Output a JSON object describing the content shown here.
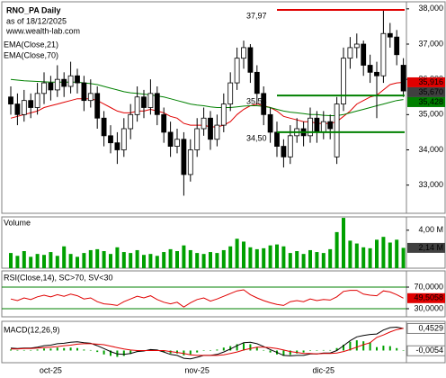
{
  "chart_data": [
    {
      "type": "candlestick",
      "title": "RNO_PA Daily",
      "subtitle": "as of 18/12/2025",
      "watermark": "www.wealth-lab.com",
      "categories": [
        null,
        null,
        null,
        null,
        null,
        null,
        "oct-25",
        null,
        null,
        null,
        null,
        null,
        null,
        null,
        null,
        null,
        null,
        null,
        null,
        null,
        null,
        null,
        null,
        null,
        null,
        null,
        null,
        null,
        "nov-25",
        null,
        null,
        null,
        null,
        null,
        null,
        null,
        null,
        null,
        null,
        null,
        null,
        null,
        null,
        null,
        null,
        null,
        null,
        "dic-25",
        null,
        null,
        null,
        null,
        null,
        null,
        null,
        null,
        null,
        null,
        null,
        null
      ],
      "open": [
        35.5,
        35.3,
        35.0,
        35.4,
        35.2,
        35.6,
        35.9,
        35.7,
        36.0,
        35.8,
        36.1,
        35.9,
        35.4,
        35.6,
        34.9,
        34.4,
        34.2,
        34.0,
        34.6,
        35.0,
        35.5,
        35.2,
        35.6,
        35.0,
        34.5,
        34.1,
        34.3,
        33.3,
        34.0,
        34.6,
        34.9,
        34.3,
        34.7,
        35.3,
        35.9,
        36.6,
        36.9,
        36.2,
        35.6,
        35.0,
        34.5,
        34.1,
        33.8,
        34.4,
        34.6,
        34.4,
        34.9,
        34.5,
        34.8,
        33.8,
        35.3,
        36.6,
        36.9,
        37.0,
        36.4,
        36.2,
        36.1,
        37.3,
        37.2,
        36.4
      ],
      "high": [
        35.8,
        35.6,
        35.7,
        35.6,
        35.9,
        36.2,
        36.1,
        36.4,
        36.2,
        36.5,
        36.3,
        36.1,
        36.0,
        35.8,
        35.1,
        34.7,
        34.5,
        34.9,
        35.3,
        35.8,
        35.7,
        36.0,
        35.8,
        35.2,
        34.8,
        34.6,
        34.5,
        34.3,
        34.9,
        35.2,
        35.1,
        35.0,
        35.6,
        36.2,
        36.9,
        37.1,
        37.0,
        36.4,
        35.8,
        35.2,
        34.8,
        34.3,
        34.7,
        34.9,
        34.8,
        35.2,
        35.1,
        35.1,
        35.0,
        35.5,
        36.9,
        37.2,
        37.3,
        37.1,
        36.7,
        36.5,
        37.97,
        37.6,
        37.4,
        36.6
      ],
      "low": [
        35.0,
        34.7,
        34.8,
        34.9,
        35.0,
        35.3,
        35.4,
        35.5,
        35.5,
        35.6,
        35.6,
        35.1,
        35.2,
        34.6,
        34.1,
        33.9,
        33.6,
        33.8,
        34.3,
        34.8,
        34.9,
        35.0,
        34.7,
        34.2,
        33.8,
        33.9,
        32.7,
        33.1,
        33.8,
        34.4,
        34.0,
        34.1,
        34.5,
        35.1,
        35.7,
        36.3,
        35.9,
        35.3,
        34.7,
        34.2,
        33.8,
        33.5,
        33.6,
        34.2,
        34.1,
        34.2,
        34.2,
        34.3,
        34.3,
        33.6,
        35.1,
        36.3,
        36.6,
        36.1,
        35.9,
        34.9,
        35.9,
        36.9,
        36.4,
        35.5
      ],
      "close": [
        35.3,
        35.0,
        35.4,
        35.2,
        35.6,
        35.9,
        35.7,
        36.0,
        35.8,
        36.1,
        35.9,
        35.4,
        35.6,
        34.9,
        34.4,
        34.2,
        34.0,
        34.6,
        35.0,
        35.5,
        35.2,
        35.6,
        35.0,
        34.5,
        34.1,
        34.3,
        33.3,
        34.0,
        34.6,
        34.9,
        34.3,
        34.7,
        35.3,
        35.9,
        36.6,
        36.9,
        36.2,
        35.6,
        35.0,
        34.5,
        34.1,
        33.8,
        34.4,
        34.6,
        34.4,
        34.9,
        34.5,
        34.8,
        34.6,
        35.3,
        36.6,
        36.9,
        37.0,
        36.4,
        36.2,
        36.1,
        37.3,
        37.2,
        36.7,
        35.67
      ],
      "series": [
        {
          "name": "EMA(Close,21)",
          "color": "#e00000",
          "values": [
            34.9,
            34.95,
            35.0,
            35.05,
            35.1,
            35.2,
            35.25,
            35.3,
            35.35,
            35.4,
            35.45,
            35.45,
            35.45,
            35.4,
            35.3,
            35.2,
            35.1,
            35.05,
            35.05,
            35.1,
            35.1,
            35.15,
            35.1,
            35.05,
            34.95,
            34.9,
            34.75,
            34.7,
            34.7,
            34.7,
            34.65,
            34.65,
            34.7,
            34.8,
            35.0,
            35.15,
            35.25,
            35.3,
            35.25,
            35.2,
            35.1,
            34.95,
            34.9,
            34.85,
            34.8,
            34.8,
            34.75,
            34.75,
            34.75,
            34.8,
            34.95,
            35.1,
            35.3,
            35.4,
            35.5,
            35.55,
            35.7,
            35.85,
            35.9,
            35.916
          ]
        },
        {
          "name": "EMA(Close,70)",
          "color": "#008000",
          "values": [
            36.0,
            35.98,
            35.96,
            35.95,
            35.94,
            35.93,
            35.92,
            35.92,
            35.92,
            35.92,
            35.92,
            35.9,
            35.88,
            35.85,
            35.8,
            35.75,
            35.7,
            35.65,
            35.62,
            35.6,
            35.58,
            35.56,
            35.53,
            35.5,
            35.45,
            35.4,
            35.35,
            35.3,
            35.27,
            35.25,
            35.22,
            35.2,
            35.2,
            35.2,
            35.22,
            35.24,
            35.25,
            35.25,
            35.23,
            35.2,
            35.15,
            35.1,
            35.07,
            35.05,
            35.03,
            35.0,
            35.0,
            34.98,
            34.97,
            34.97,
            35.0,
            35.05,
            35.1,
            35.15,
            35.2,
            35.25,
            35.3,
            35.35,
            35.4,
            35.428
          ]
        }
      ],
      "levels": [
        {
          "value": 37.97,
          "label": "37,97",
          "color": "#e00000"
        },
        {
          "value": 35.54,
          "label": "35,54",
          "color": "#008000"
        },
        {
          "value": 34.5,
          "label": "34,50",
          "color": "#008000"
        }
      ],
      "tags": [
        {
          "value": 35.916,
          "label": "35,916",
          "color": "#e00000"
        },
        {
          "value": 35.67,
          "label": "35,670",
          "color": "#404040"
        },
        {
          "value": 35.428,
          "label": "35,428",
          "color": "#008000"
        }
      ],
      "ylim": [
        32.2,
        38.2
      ],
      "yticks": [
        {
          "value": 33,
          "label": "33,000"
        },
        {
          "value": 34,
          "label": "34,000"
        },
        {
          "value": 35,
          "label": "35,000"
        },
        {
          "value": 36,
          "label": "36,000"
        },
        {
          "value": 37,
          "label": "37,000"
        },
        {
          "value": 38,
          "label": "38,000"
        }
      ],
      "grid": false
    },
    {
      "type": "bar",
      "title": "Volume",
      "color": "#00a000",
      "values": [
        1.6,
        1.3,
        1.8,
        1.2,
        1.5,
        1.4,
        1.7,
        1.3,
        2.3,
        1.5,
        1.2,
        1.6,
        1.9,
        2.0,
        1.8,
        1.5,
        2.2,
        1.7,
        1.6,
        1.9,
        1.4,
        1.5,
        1.3,
        1.7,
        2.0,
        1.8,
        2.4,
        1.9,
        1.6,
        1.5,
        1.7,
        1.6,
        1.9,
        2.3,
        3.1,
        2.8,
        2.2,
        2.0,
        2.1,
        2.4,
        2.5,
        2.3,
        1.6,
        1.8,
        1.5,
        1.9,
        1.7,
        1.6,
        2.0,
        3.8,
        5.3,
        2.9,
        2.6,
        2.2,
        2.1,
        3.0,
        3.3,
        2.7,
        3.0,
        2.14
      ],
      "tags": [
        {
          "value": 2.14,
          "label": "2,14 M",
          "color": "#404040"
        }
      ],
      "ylim": [
        0,
        5.4
      ],
      "yticks": [
        {
          "value": 4,
          "label": "4,00 M"
        }
      ],
      "grid": false
    },
    {
      "type": "line",
      "title": "RSI(Close,14), SC>70, SV<30",
      "color": "#e00000",
      "values": [
        48,
        45,
        50,
        47,
        52,
        55,
        52,
        56,
        53,
        57,
        54,
        48,
        50,
        43,
        39,
        38,
        36,
        43,
        48,
        53,
        50,
        54,
        47,
        42,
        39,
        42,
        33,
        41,
        47,
        50,
        44,
        48,
        53,
        58,
        63,
        65,
        56,
        50,
        45,
        41,
        38,
        36,
        43,
        45,
        43,
        48,
        45,
        47,
        46,
        52,
        62,
        64,
        64,
        57,
        55,
        54,
        63,
        61,
        56,
        49.5058
      ],
      "tags": [
        {
          "value": 49.5058,
          "label": "49,5058",
          "color": "#e00000"
        }
      ],
      "ylim": [
        15,
        100
      ],
      "yticks": [
        {
          "value": 70,
          "label": "70,0000"
        },
        {
          "value": 30,
          "label": "30,0000"
        }
      ],
      "grid": true,
      "grid_color": "#008000"
    },
    {
      "type": "macd",
      "title": "MACD(12,26,9)",
      "color": "#00a000",
      "values": [
        0.02,
        0.01,
        0.01,
        0.01,
        0.02,
        0.04,
        0.04,
        0.06,
        0.05,
        0.06,
        0.05,
        0.02,
        0.01,
        -0.03,
        -0.08,
        -0.11,
        -0.13,
        -0.11,
        -0.07,
        -0.02,
        -0.01,
        0.02,
        0.01,
        -0.03,
        -0.06,
        -0.06,
        -0.1,
        -0.08,
        -0.04,
        0.0,
        0.0,
        0.02,
        0.06,
        0.09,
        0.13,
        0.15,
        0.13,
        0.07,
        0.01,
        -0.04,
        -0.08,
        -0.11,
        -0.09,
        -0.06,
        -0.04,
        -0.01,
        0.0,
        0.01,
        0.01,
        0.05,
        0.12,
        0.18,
        0.21,
        0.19,
        0.17,
        0.07,
        0.1,
        0.09,
        0.05,
        -0.0054
      ],
      "series": [
        {
          "color": "#000000",
          "values": [
            0.05,
            0.04,
            0.05,
            0.05,
            0.07,
            0.1,
            0.11,
            0.14,
            0.15,
            0.17,
            0.18,
            0.16,
            0.15,
            0.1,
            0.04,
            -0.02,
            -0.07,
            -0.08,
            -0.06,
            -0.02,
            -0.01,
            0.02,
            0.01,
            -0.03,
            -0.08,
            -0.1,
            -0.16,
            -0.17,
            -0.14,
            -0.1,
            -0.1,
            -0.08,
            -0.03,
            0.03,
            0.1,
            0.16,
            0.17,
            0.14,
            0.08,
            0.02,
            -0.04,
            -0.1,
            -0.11,
            -0.1,
            -0.1,
            -0.07,
            -0.07,
            -0.05,
            -0.05,
            0.0,
            0.1,
            0.2,
            0.28,
            0.31,
            0.33,
            0.34,
            0.42,
            0.47,
            0.48,
            0.4529
          ]
        },
        {
          "color": "#e00000",
          "values": [
            0.03,
            0.03,
            0.04,
            0.04,
            0.05,
            0.06,
            0.07,
            0.08,
            0.1,
            0.11,
            0.13,
            0.14,
            0.14,
            0.13,
            0.12,
            0.09,
            0.06,
            0.03,
            0.01,
            0.0,
            0.0,
            0.0,
            0.0,
            0.0,
            -0.02,
            -0.04,
            -0.06,
            -0.09,
            -0.1,
            -0.1,
            -0.1,
            -0.1,
            -0.09,
            -0.06,
            -0.03,
            0.01,
            0.04,
            0.07,
            0.07,
            0.06,
            0.04,
            0.01,
            -0.02,
            -0.04,
            -0.06,
            -0.06,
            -0.07,
            -0.06,
            -0.06,
            -0.05,
            -0.02,
            0.02,
            0.07,
            0.12,
            0.16,
            0.27,
            0.32,
            0.38,
            0.43,
            0.4583
          ]
        }
      ],
      "tags": [
        {
          "value": 0.4529,
          "label": "0,4529",
          "color": "#ffffff"
        },
        {
          "value": -0.0054,
          "label": "-0,0054",
          "color": "#ffffff"
        }
      ],
      "ylim": [
        -0.25,
        0.6
      ],
      "grid": false
    }
  ]
}
